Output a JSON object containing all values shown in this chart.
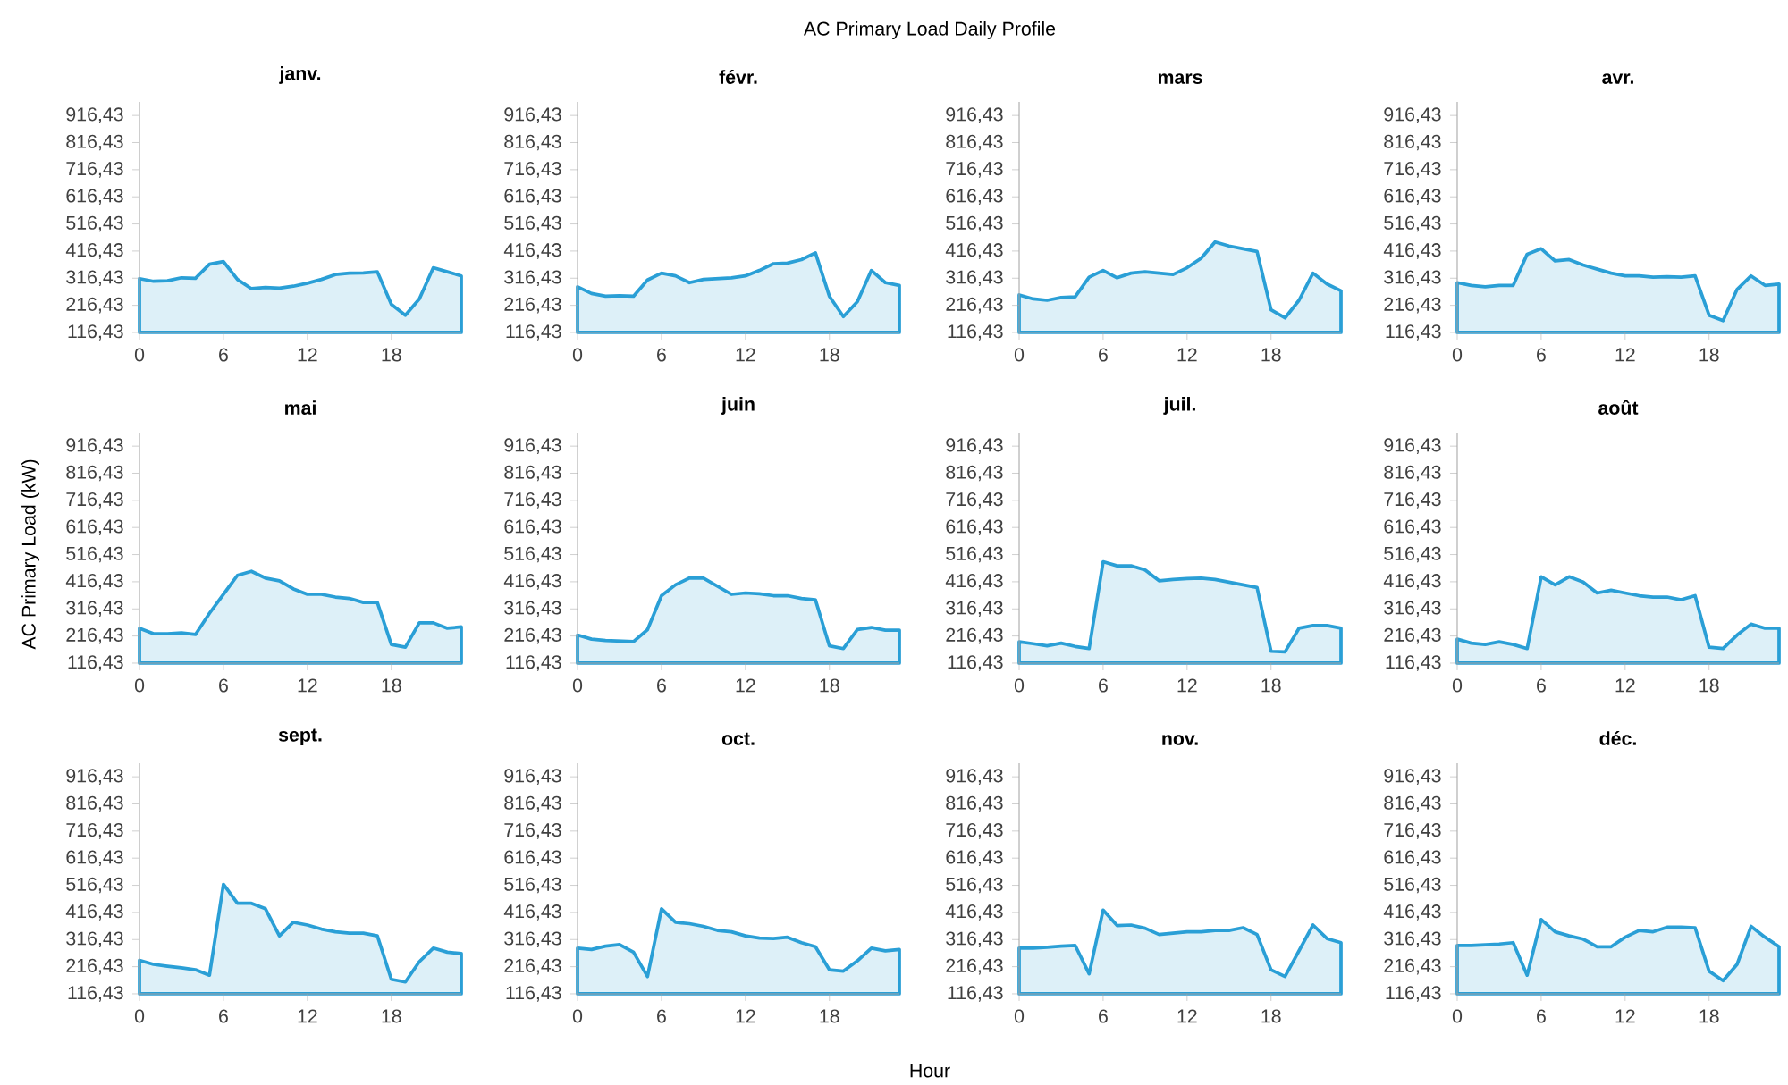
{
  "chart_data": [
    {
      "type": "area",
      "title": "janv.",
      "x": [
        0,
        1,
        2,
        3,
        4,
        5,
        6,
        7,
        8,
        9,
        10,
        11,
        12,
        13,
        14,
        15,
        16,
        17,
        18,
        19,
        20,
        21,
        22,
        23
      ],
      "values": [
        315,
        305,
        307,
        318,
        316,
        368,
        378,
        312,
        278,
        282,
        280,
        287,
        298,
        312,
        330,
        335,
        336,
        340,
        220,
        180,
        240,
        355,
        340,
        325
      ],
      "color": "#2a9fd6",
      "xlim": [
        0,
        23
      ],
      "xticks": [
        0,
        6,
        12,
        18
      ],
      "ylim": [
        116.43,
        966.43
      ],
      "yticks": [
        {
          "value": 116.43,
          "label": "116,43"
        },
        {
          "value": 216.43,
          "label": "216,43"
        },
        {
          "value": 316.43,
          "label": "316,43"
        },
        {
          "value": 416.43,
          "label": "416,43"
        },
        {
          "value": 516.43,
          "label": "516,43"
        },
        {
          "value": 616.43,
          "label": "616,43"
        },
        {
          "value": 716.43,
          "label": "716,43"
        },
        {
          "value": 816.43,
          "label": "816,43"
        },
        {
          "value": 916.43,
          "label": "916,43"
        }
      ]
    },
    {
      "type": "area",
      "title": "févr.",
      "x": [
        0,
        1,
        2,
        3,
        4,
        5,
        6,
        7,
        8,
        9,
        10,
        11,
        12,
        13,
        14,
        15,
        16,
        17,
        18,
        19,
        20,
        21,
        22,
        23
      ],
      "values": [
        285,
        260,
        250,
        252,
        250,
        310,
        335,
        325,
        300,
        312,
        315,
        318,
        325,
        345,
        370,
        372,
        385,
        410,
        250,
        175,
        230,
        345,
        300,
        290
      ],
      "color": "#2a9fd6",
      "xlim": [
        0,
        23
      ],
      "xticks": [
        0,
        6,
        12,
        18
      ],
      "ylim": [
        116.43,
        966.43
      ],
      "yticks": [
        {
          "value": 116.43,
          "label": "116,43"
        },
        {
          "value": 216.43,
          "label": "216,43"
        },
        {
          "value": 316.43,
          "label": "316,43"
        },
        {
          "value": 416.43,
          "label": "416,43"
        },
        {
          "value": 516.43,
          "label": "516,43"
        },
        {
          "value": 616.43,
          "label": "616,43"
        },
        {
          "value": 716.43,
          "label": "716,43"
        },
        {
          "value": 816.43,
          "label": "816,43"
        },
        {
          "value": 916.43,
          "label": "916,43"
        }
      ]
    },
    {
      "type": "area",
      "title": "mars",
      "annotations": [
        "AC Primary Load Daily Profile"
      ],
      "x": [
        0,
        1,
        2,
        3,
        4,
        5,
        6,
        7,
        8,
        9,
        10,
        11,
        12,
        13,
        14,
        15,
        16,
        17,
        18,
        19,
        20,
        21,
        22,
        23
      ],
      "values": [
        255,
        240,
        235,
        245,
        248,
        320,
        345,
        318,
        335,
        340,
        335,
        330,
        355,
        390,
        450,
        435,
        425,
        415,
        200,
        170,
        235,
        335,
        295,
        270
      ],
      "color": "#2a9fd6",
      "xlim": [
        0,
        23
      ],
      "xticks": [
        0,
        6,
        12,
        18
      ],
      "ylim": [
        116.43,
        966.43
      ],
      "yticks": [
        {
          "value": 116.43,
          "label": "116,43"
        },
        {
          "value": 216.43,
          "label": "216,43"
        },
        {
          "value": 316.43,
          "label": "316,43"
        },
        {
          "value": 416.43,
          "label": "416,43"
        },
        {
          "value": 516.43,
          "label": "516,43"
        },
        {
          "value": 616.43,
          "label": "616,43"
        },
        {
          "value": 716.43,
          "label": "716,43"
        },
        {
          "value": 816.43,
          "label": "816,43"
        },
        {
          "value": 916.43,
          "label": "916,43"
        }
      ]
    },
    {
      "type": "area",
      "title": "avr.",
      "x": [
        0,
        1,
        2,
        3,
        4,
        5,
        6,
        7,
        8,
        9,
        10,
        11,
        12,
        13,
        14,
        15,
        16,
        17,
        18,
        19,
        20,
        21,
        22,
        23
      ],
      "values": [
        300,
        290,
        285,
        290,
        290,
        405,
        425,
        380,
        385,
        365,
        350,
        335,
        325,
        325,
        320,
        322,
        320,
        325,
        180,
        160,
        275,
        325,
        290,
        295
      ],
      "color": "#2a9fd6",
      "xlim": [
        0,
        23
      ],
      "xticks": [
        0,
        6,
        12,
        18
      ],
      "ylim": [
        116.43,
        966.43
      ],
      "yticks": [
        {
          "value": 116.43,
          "label": "116,43"
        },
        {
          "value": 216.43,
          "label": "216,43"
        },
        {
          "value": 316.43,
          "label": "316,43"
        },
        {
          "value": 416.43,
          "label": "416,43"
        },
        {
          "value": 516.43,
          "label": "516,43"
        },
        {
          "value": 616.43,
          "label": "616,43"
        },
        {
          "value": 716.43,
          "label": "716,43"
        },
        {
          "value": 816.43,
          "label": "816,43"
        },
        {
          "value": 916.43,
          "label": "916,43"
        }
      ]
    },
    {
      "type": "area",
      "title": "mai",
      "ylabel": "AC Primary Load (kW)",
      "x": [
        0,
        1,
        2,
        3,
        4,
        5,
        6,
        7,
        8,
        9,
        10,
        11,
        12,
        13,
        14,
        15,
        16,
        17,
        18,
        19,
        20,
        21,
        22,
        23
      ],
      "values": [
        245,
        225,
        225,
        228,
        222,
        300,
        370,
        440,
        455,
        430,
        420,
        390,
        370,
        370,
        360,
        355,
        340,
        340,
        185,
        175,
        265,
        265,
        245,
        250
      ],
      "color": "#2a9fd6",
      "xlim": [
        0,
        23
      ],
      "xticks": [
        0,
        6,
        12,
        18
      ],
      "ylim": [
        116.43,
        966.43
      ],
      "yticks": [
        {
          "value": 116.43,
          "label": "116,43"
        },
        {
          "value": 216.43,
          "label": "216,43"
        },
        {
          "value": 316.43,
          "label": "316,43"
        },
        {
          "value": 416.43,
          "label": "416,43"
        },
        {
          "value": 516.43,
          "label": "516,43"
        },
        {
          "value": 616.43,
          "label": "616,43"
        },
        {
          "value": 716.43,
          "label": "716,43"
        },
        {
          "value": 816.43,
          "label": "816,43"
        },
        {
          "value": 916.43,
          "label": "916,43"
        }
      ]
    },
    {
      "type": "area",
      "title": "juin",
      "x": [
        0,
        1,
        2,
        3,
        4,
        5,
        6,
        7,
        8,
        9,
        10,
        11,
        12,
        13,
        14,
        15,
        16,
        17,
        18,
        19,
        20,
        21,
        22,
        23
      ],
      "values": [
        220,
        205,
        200,
        198,
        196,
        240,
        365,
        405,
        430,
        430,
        400,
        370,
        375,
        372,
        365,
        365,
        355,
        350,
        180,
        170,
        240,
        248,
        238,
        238
      ],
      "color": "#2a9fd6",
      "xlim": [
        0,
        23
      ],
      "xticks": [
        0,
        6,
        12,
        18
      ],
      "ylim": [
        116.43,
        966.43
      ],
      "yticks": [
        {
          "value": 116.43,
          "label": "116,43"
        },
        {
          "value": 216.43,
          "label": "216,43"
        },
        {
          "value": 316.43,
          "label": "316,43"
        },
        {
          "value": 416.43,
          "label": "416,43"
        },
        {
          "value": 516.43,
          "label": "516,43"
        },
        {
          "value": 616.43,
          "label": "616,43"
        },
        {
          "value": 716.43,
          "label": "716,43"
        },
        {
          "value": 816.43,
          "label": "816,43"
        },
        {
          "value": 916.43,
          "label": "916,43"
        }
      ]
    },
    {
      "type": "area",
      "title": "juil.",
      "x": [
        0,
        1,
        2,
        3,
        4,
        5,
        6,
        7,
        8,
        9,
        10,
        11,
        12,
        13,
        14,
        15,
        16,
        17,
        18,
        19,
        20,
        21,
        22,
        23
      ],
      "values": [
        195,
        188,
        180,
        190,
        178,
        170,
        490,
        475,
        475,
        460,
        420,
        425,
        428,
        430,
        425,
        415,
        405,
        395,
        160,
        158,
        245,
        255,
        255,
        245
      ],
      "color": "#2a9fd6",
      "xlim": [
        0,
        23
      ],
      "xticks": [
        0,
        6,
        12,
        18
      ],
      "ylim": [
        116.43,
        966.43
      ],
      "yticks": [
        {
          "value": 116.43,
          "label": "116,43"
        },
        {
          "value": 216.43,
          "label": "216,43"
        },
        {
          "value": 316.43,
          "label": "316,43"
        },
        {
          "value": 416.43,
          "label": "416,43"
        },
        {
          "value": 516.43,
          "label": "516,43"
        },
        {
          "value": 616.43,
          "label": "616,43"
        },
        {
          "value": 716.43,
          "label": "716,43"
        },
        {
          "value": 816.43,
          "label": "816,43"
        },
        {
          "value": 916.43,
          "label": "916,43"
        }
      ]
    },
    {
      "type": "area",
      "title": "août",
      "x": [
        0,
        1,
        2,
        3,
        4,
        5,
        6,
        7,
        8,
        9,
        10,
        11,
        12,
        13,
        14,
        15,
        16,
        17,
        18,
        19,
        20,
        21,
        22,
        23
      ],
      "values": [
        205,
        190,
        185,
        195,
        185,
        170,
        435,
        405,
        435,
        415,
        375,
        385,
        375,
        365,
        360,
        360,
        350,
        365,
        175,
        170,
        220,
        260,
        245,
        245
      ],
      "color": "#2a9fd6",
      "xlim": [
        0,
        23
      ],
      "xticks": [
        0,
        6,
        12,
        18
      ],
      "ylim": [
        116.43,
        966.43
      ],
      "yticks": [
        {
          "value": 116.43,
          "label": "116,43"
        },
        {
          "value": 216.43,
          "label": "216,43"
        },
        {
          "value": 316.43,
          "label": "316,43"
        },
        {
          "value": 416.43,
          "label": "416,43"
        },
        {
          "value": 516.43,
          "label": "516,43"
        },
        {
          "value": 616.43,
          "label": "616,43"
        },
        {
          "value": 716.43,
          "label": "716,43"
        },
        {
          "value": 816.43,
          "label": "816,43"
        },
        {
          "value": 916.43,
          "label": "916,43"
        }
      ]
    },
    {
      "type": "area",
      "title": "sept.",
      "x": [
        0,
        1,
        2,
        3,
        4,
        5,
        6,
        7,
        8,
        9,
        10,
        11,
        12,
        13,
        14,
        15,
        16,
        17,
        18,
        19,
        20,
        21,
        22,
        23
      ],
      "values": [
        240,
        225,
        218,
        212,
        205,
        185,
        520,
        450,
        450,
        430,
        330,
        380,
        370,
        355,
        345,
        340,
        340,
        330,
        170,
        160,
        235,
        285,
        270,
        265
      ],
      "color": "#2a9fd6",
      "xlim": [
        0,
        23
      ],
      "xticks": [
        0,
        6,
        12,
        18
      ],
      "ylim": [
        116.43,
        966.43
      ],
      "yticks": [
        {
          "value": 116.43,
          "label": "116,43"
        },
        {
          "value": 216.43,
          "label": "216,43"
        },
        {
          "value": 316.43,
          "label": "316,43"
        },
        {
          "value": 416.43,
          "label": "416,43"
        },
        {
          "value": 516.43,
          "label": "516,43"
        },
        {
          "value": 616.43,
          "label": "616,43"
        },
        {
          "value": 716.43,
          "label": "716,43"
        },
        {
          "value": 816.43,
          "label": "816,43"
        },
        {
          "value": 916.43,
          "label": "916,43"
        }
      ]
    },
    {
      "type": "area",
      "title": "oct.",
      "xlabel": "Hour",
      "x": [
        0,
        1,
        2,
        3,
        4,
        5,
        6,
        7,
        8,
        9,
        10,
        11,
        12,
        13,
        14,
        15,
        16,
        17,
        18,
        19,
        20,
        21,
        22,
        23
      ],
      "values": [
        285,
        280,
        292,
        298,
        270,
        180,
        430,
        380,
        375,
        365,
        350,
        345,
        330,
        322,
        320,
        325,
        305,
        290,
        205,
        200,
        238,
        285,
        275,
        280
      ],
      "color": "#2a9fd6",
      "xlim": [
        0,
        23
      ],
      "xticks": [
        0,
        6,
        12,
        18
      ],
      "ylim": [
        116.43,
        966.43
      ],
      "yticks": [
        {
          "value": 116.43,
          "label": "116,43"
        },
        {
          "value": 216.43,
          "label": "216,43"
        },
        {
          "value": 316.43,
          "label": "316,43"
        },
        {
          "value": 416.43,
          "label": "416,43"
        },
        {
          "value": 516.43,
          "label": "516,43"
        },
        {
          "value": 616.43,
          "label": "616,43"
        },
        {
          "value": 716.43,
          "label": "716,43"
        },
        {
          "value": 816.43,
          "label": "816,43"
        },
        {
          "value": 916.43,
          "label": "916,43"
        }
      ]
    },
    {
      "type": "area",
      "title": "nov.",
      "x": [
        0,
        1,
        2,
        3,
        4,
        5,
        6,
        7,
        8,
        9,
        10,
        11,
        12,
        13,
        14,
        15,
        16,
        17,
        18,
        19,
        20,
        21,
        22,
        23
      ],
      "values": [
        285,
        285,
        288,
        292,
        295,
        190,
        425,
        368,
        370,
        358,
        335,
        340,
        345,
        345,
        350,
        350,
        360,
        335,
        205,
        180,
        275,
        370,
        320,
        305
      ],
      "color": "#2a9fd6",
      "xlim": [
        0,
        23
      ],
      "xticks": [
        0,
        6,
        12,
        18
      ],
      "ylim": [
        116.43,
        966.43
      ],
      "yticks": [
        {
          "value": 116.43,
          "label": "116,43"
        },
        {
          "value": 216.43,
          "label": "216,43"
        },
        {
          "value": 316.43,
          "label": "316,43"
        },
        {
          "value": 416.43,
          "label": "416,43"
        },
        {
          "value": 516.43,
          "label": "516,43"
        },
        {
          "value": 616.43,
          "label": "616,43"
        },
        {
          "value": 716.43,
          "label": "716,43"
        },
        {
          "value": 816.43,
          "label": "816,43"
        },
        {
          "value": 916.43,
          "label": "916,43"
        }
      ]
    },
    {
      "type": "area",
      "title": "déc.",
      "x": [
        0,
        1,
        2,
        3,
        4,
        5,
        6,
        7,
        8,
        9,
        10,
        11,
        12,
        13,
        14,
        15,
        16,
        17,
        18,
        19,
        20,
        21,
        22,
        23
      ],
      "values": [
        295,
        295,
        297,
        300,
        305,
        185,
        390,
        345,
        330,
        318,
        290,
        290,
        325,
        350,
        345,
        362,
        362,
        360,
        200,
        165,
        225,
        365,
        325,
        290
      ],
      "color": "#2a9fd6",
      "xlim": [
        0,
        23
      ],
      "xticks": [
        0,
        6,
        12,
        18
      ],
      "ylim": [
        116.43,
        966.43
      ],
      "yticks": [
        {
          "value": 116.43,
          "label": "116,43"
        },
        {
          "value": 216.43,
          "label": "216,43"
        },
        {
          "value": 316.43,
          "label": "316,43"
        },
        {
          "value": 416.43,
          "label": "416,43"
        },
        {
          "value": 516.43,
          "label": "516,43"
        },
        {
          "value": 616.43,
          "label": "616,43"
        },
        {
          "value": 716.43,
          "label": "716,43"
        },
        {
          "value": 816.43,
          "label": "816,43"
        },
        {
          "value": 916.43,
          "label": "916,43"
        }
      ]
    }
  ]
}
